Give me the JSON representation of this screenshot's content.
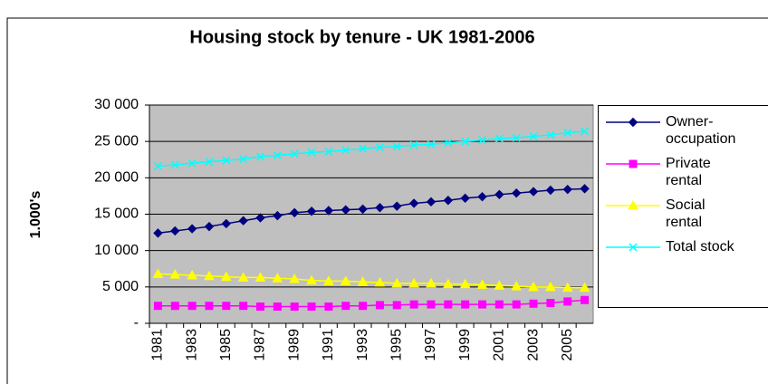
{
  "chart_data": {
    "type": "line",
    "title": "Housing stock by tenure - UK 1981-2006",
    "y_label": "1.000's",
    "categories": [
      "1981",
      null,
      "1983",
      null,
      "1985",
      null,
      "1987",
      null,
      "1989",
      null,
      "1991",
      null,
      "1993",
      null,
      "1995",
      null,
      "1997",
      null,
      "1999",
      null,
      "2001",
      null,
      "2003",
      null,
      "2005",
      null
    ],
    "ylim": [
      0,
      30000
    ],
    "yticks": [
      {
        "value": 0,
        "label": "-"
      },
      {
        "value": 5000,
        "label": "5 000"
      },
      {
        "value": 10000,
        "label": "10 000"
      },
      {
        "value": 15000,
        "label": "15 000"
      },
      {
        "value": 20000,
        "label": "20 000"
      },
      {
        "value": 25000,
        "label": "25 000"
      },
      {
        "value": 30000,
        "label": "30 000"
      }
    ],
    "grid": true,
    "legend": "right",
    "plot_color": "#c0c0c0",
    "series": [
      {
        "name": "Owner-occupation",
        "color": "#000080",
        "marker": "diamond",
        "values": [
          12400,
          12700,
          13000,
          13300,
          13700,
          14100,
          14500,
          14800,
          15200,
          15400,
          15500,
          15600,
          15700,
          15900,
          16100,
          16500,
          16700,
          16900,
          17200,
          17400,
          17700,
          17900,
          18100,
          18300,
          18400,
          18500
        ]
      },
      {
        "name": "Private rental",
        "color": "#ff00ff",
        "marker": "square",
        "values": [
          2400,
          2400,
          2400,
          2400,
          2400,
          2400,
          2300,
          2300,
          2300,
          2300,
          2300,
          2400,
          2400,
          2500,
          2500,
          2600,
          2600,
          2600,
          2600,
          2600,
          2600,
          2600,
          2700,
          2800,
          3000,
          3200
        ]
      },
      {
        "name": "Social rental",
        "color": "#ffff00",
        "marker": "triangle",
        "values": [
          6800,
          6700,
          6600,
          6500,
          6400,
          6300,
          6300,
          6200,
          6100,
          5900,
          5800,
          5800,
          5700,
          5600,
          5500,
          5500,
          5500,
          5400,
          5400,
          5300,
          5200,
          5100,
          5000,
          5000,
          4900,
          4900
        ]
      },
      {
        "name": "Total stock",
        "color": "#00ffff",
        "marker": "x",
        "values": [
          21600,
          21800,
          22000,
          22200,
          22400,
          22600,
          22900,
          23100,
          23300,
          23500,
          23600,
          23800,
          24000,
          24200,
          24300,
          24500,
          24600,
          24800,
          25000,
          25200,
          25400,
          25500,
          25700,
          25900,
          26200,
          26400
        ]
      }
    ]
  }
}
